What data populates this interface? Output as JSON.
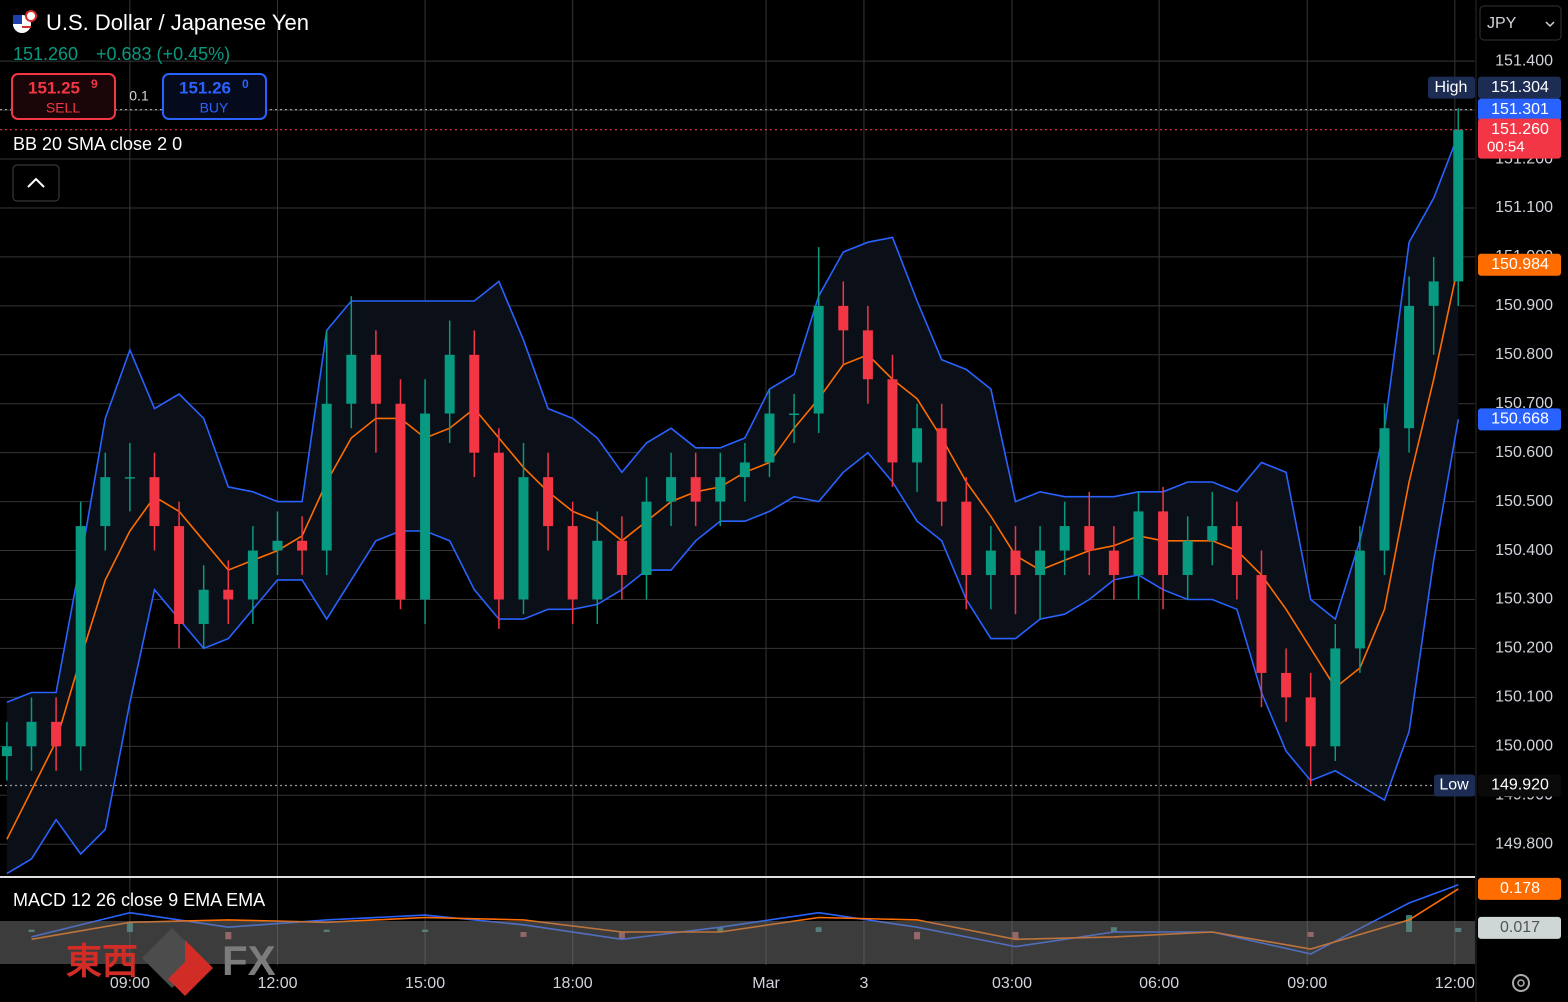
{
  "header": {
    "price_change": "+0.683 (+0.45%)",
    "sell_price": "151.25",
    "sell_pip": "9",
    "sell_label": "SELL",
    "spread": "0.1",
    "buy_price": "151.26",
    "buy_pip": "0",
    "buy_label": "BUY",
    "currency": "JPY"
  },
  "watermark": {
    "cjk": "東西",
    "latin": "FX"
  },
  "chart_data": [
    {
      "type": "candlestick",
      "title": "U.S. Dollar / Japanese Yen",
      "x": [
        -2.5,
        -2,
        -1.5,
        -1,
        -0.5,
        0,
        0.5,
        1,
        1.5,
        2,
        2.5,
        3,
        3.5,
        4,
        4.5,
        5,
        5.5,
        6,
        6.5,
        7,
        7.5,
        8,
        8.5,
        9,
        9.5,
        10,
        10.5,
        11,
        11.5,
        12,
        12.5,
        13,
        13.5,
        14,
        14.5,
        15,
        15.5,
        16,
        16.5,
        17,
        17.5,
        18,
        18.5,
        19,
        19.5,
        20,
        20.5,
        21,
        21.5,
        22,
        22.5,
        23,
        23.5,
        24,
        24.5,
        25,
        25.5,
        26,
        26.5,
        27
      ],
      "open": [
        149.98,
        150.0,
        150.05,
        150.0,
        150.45,
        150.55,
        150.55,
        150.45,
        150.25,
        150.32,
        150.3,
        150.4,
        150.42,
        150.4,
        150.7,
        150.8,
        150.7,
        150.3,
        150.68,
        150.8,
        150.6,
        150.3,
        150.55,
        150.45,
        150.3,
        150.42,
        150.35,
        150.5,
        150.55,
        150.5,
        150.55,
        150.58,
        150.68,
        150.68,
        150.9,
        150.85,
        150.75,
        150.58,
        150.65,
        150.5,
        150.35,
        150.4,
        150.35,
        150.4,
        150.45,
        150.4,
        150.35,
        150.48,
        150.35,
        150.42,
        150.45,
        150.35,
        150.15,
        150.1,
        150.0,
        150.2,
        150.4,
        150.65,
        150.9,
        150.95
      ],
      "high": [
        150.05,
        150.1,
        150.1,
        150.5,
        150.6,
        150.62,
        150.6,
        150.5,
        150.37,
        150.38,
        150.45,
        150.48,
        150.47,
        150.85,
        150.92,
        150.85,
        150.75,
        150.75,
        150.87,
        150.85,
        150.65,
        150.62,
        150.6,
        150.5,
        150.48,
        150.47,
        150.55,
        150.6,
        150.6,
        150.6,
        150.62,
        150.73,
        150.72,
        151.02,
        150.95,
        150.9,
        150.8,
        150.7,
        150.7,
        150.55,
        150.45,
        150.45,
        150.45,
        150.5,
        150.52,
        150.45,
        150.52,
        150.53,
        150.47,
        150.52,
        150.5,
        150.4,
        150.2,
        150.15,
        150.25,
        150.45,
        150.7,
        150.96,
        151.0,
        151.304
      ],
      "low": [
        149.93,
        149.95,
        149.95,
        149.95,
        150.4,
        150.48,
        150.4,
        150.2,
        150.2,
        150.25,
        150.25,
        150.35,
        150.35,
        150.35,
        150.65,
        150.6,
        150.28,
        150.25,
        150.62,
        150.55,
        150.24,
        150.27,
        150.4,
        150.25,
        150.25,
        150.3,
        150.3,
        150.45,
        150.45,
        150.45,
        150.5,
        150.55,
        150.62,
        150.64,
        150.78,
        150.7,
        150.53,
        150.52,
        150.45,
        150.28,
        150.28,
        150.27,
        150.26,
        150.35,
        150.35,
        150.3,
        150.3,
        150.28,
        150.3,
        150.37,
        150.3,
        150.08,
        150.05,
        149.92,
        149.97,
        150.15,
        150.35,
        150.6,
        150.8,
        150.9
      ],
      "close": [
        150.0,
        150.05,
        150.0,
        150.45,
        150.55,
        150.55,
        150.45,
        150.25,
        150.32,
        150.3,
        150.4,
        150.42,
        150.4,
        150.7,
        150.8,
        150.7,
        150.3,
        150.68,
        150.8,
        150.6,
        150.3,
        150.55,
        150.45,
        150.3,
        150.42,
        150.35,
        150.5,
        150.55,
        150.5,
        150.55,
        150.58,
        150.68,
        150.68,
        150.9,
        150.85,
        150.75,
        150.58,
        150.65,
        150.5,
        150.35,
        150.4,
        150.35,
        150.4,
        150.45,
        150.4,
        150.35,
        150.48,
        150.35,
        150.42,
        150.45,
        150.35,
        150.15,
        150.1,
        150.0,
        150.2,
        150.4,
        150.65,
        150.9,
        150.95,
        151.26
      ],
      "up_color": "#089981",
      "down_color": "#f23645",
      "bollinger": {
        "name": "BB 20 SMA close 2 0",
        "band_color": "#2962ff",
        "basis_color": "#ff6d00",
        "fill": "#0b0f17",
        "upper": [
          150.09,
          150.11,
          150.11,
          150.38,
          150.67,
          150.81,
          150.69,
          150.72,
          150.67,
          150.53,
          150.52,
          150.5,
          150.5,
          150.85,
          150.91,
          150.91,
          150.91,
          150.91,
          150.91,
          150.91,
          150.95,
          150.83,
          150.69,
          150.67,
          150.63,
          150.56,
          150.62,
          150.65,
          150.61,
          150.61,
          150.63,
          150.73,
          150.76,
          150.92,
          151.01,
          151.03,
          151.04,
          150.91,
          150.79,
          150.77,
          150.73,
          150.5,
          150.52,
          150.51,
          150.51,
          150.51,
          150.52,
          150.52,
          150.54,
          150.54,
          150.52,
          150.58,
          150.56,
          150.3,
          150.26,
          150.42,
          150.65,
          151.03,
          151.12,
          151.25
        ],
        "basis": [
          149.81,
          149.91,
          150.01,
          150.18,
          150.34,
          150.44,
          150.51,
          150.48,
          150.42,
          150.36,
          150.38,
          150.4,
          150.43,
          150.54,
          150.63,
          150.67,
          150.67,
          150.63,
          150.65,
          150.69,
          150.63,
          150.57,
          150.52,
          150.48,
          150.46,
          150.42,
          150.46,
          150.5,
          150.52,
          150.53,
          150.56,
          150.58,
          150.65,
          150.71,
          150.78,
          150.8,
          150.75,
          150.71,
          150.63,
          150.54,
          150.47,
          150.39,
          150.36,
          150.38,
          150.4,
          150.41,
          150.43,
          150.42,
          150.42,
          150.42,
          150.4,
          150.35,
          150.28,
          150.2,
          150.12,
          150.16,
          150.28,
          150.54,
          150.75,
          150.984
        ],
        "lower": [
          149.74,
          149.77,
          149.85,
          149.78,
          149.83,
          150.09,
          150.32,
          150.26,
          150.2,
          150.22,
          150.28,
          150.34,
          150.34,
          150.26,
          150.34,
          150.42,
          150.44,
          150.44,
          150.42,
          150.32,
          150.26,
          150.26,
          150.28,
          150.28,
          150.29,
          150.32,
          150.36,
          150.36,
          150.42,
          150.46,
          150.46,
          150.48,
          150.51,
          150.5,
          150.56,
          150.6,
          150.54,
          150.46,
          150.42,
          150.3,
          150.22,
          150.22,
          150.26,
          150.27,
          150.3,
          150.34,
          150.35,
          150.32,
          150.3,
          150.3,
          150.28,
          150.11,
          149.99,
          149.93,
          149.95,
          149.92,
          149.89,
          150.03,
          150.38,
          150.668
        ]
      },
      "high_marker": {
        "label": "High",
        "value": 151.304
      },
      "low_marker": {
        "label": "Low",
        "value": 149.92,
        "value_label": "149.920"
      },
      "bid_line": 151.301,
      "last": {
        "value": 151.26,
        "label": "151.260",
        "countdown": "00:54"
      },
      "xlim": [
        -2.64,
        27.34
      ],
      "xticks": [
        {
          "value": 0,
          "label": "09:00"
        },
        {
          "value": 3,
          "label": "12:00"
        },
        {
          "value": 6,
          "label": "15:00"
        },
        {
          "value": 9,
          "label": "18:00"
        },
        {
          "value": 12.93,
          "label": "Mar"
        },
        {
          "value": 14.92,
          "label": "3"
        },
        {
          "value": 17.93,
          "label": "03:00"
        },
        {
          "value": 20.92,
          "label": "06:00"
        },
        {
          "value": 23.93,
          "label": "09:00"
        },
        {
          "value": 26.93,
          "label": "12:00"
        }
      ],
      "ylim": [
        149.735,
        151.525
      ],
      "yticks": [
        {
          "value": 149.8,
          "label": "149.800"
        },
        {
          "value": 149.9,
          "label": "149.900"
        },
        {
          "value": 150,
          "label": "150.000"
        },
        {
          "value": 150.1,
          "label": "150.100"
        },
        {
          "value": 150.2,
          "label": "150.200"
        },
        {
          "value": 150.3,
          "label": "150.300"
        },
        {
          "value": 150.4,
          "label": "150.400"
        },
        {
          "value": 150.5,
          "label": "150.500"
        },
        {
          "value": 150.6,
          "label": "150.600"
        },
        {
          "value": 150.7,
          "label": "150.700"
        },
        {
          "value": 150.8,
          "label": "150.800"
        },
        {
          "value": 150.9,
          "label": "150.900"
        },
        {
          "value": 151,
          "label": "151.000"
        },
        {
          "value": 151.1,
          "label": "151.100"
        },
        {
          "value": 151.2,
          "label": "151.200"
        },
        {
          "value": 151.3,
          "label": "151.300"
        },
        {
          "value": 151.4,
          "label": "151.400"
        }
      ],
      "grid": true
    },
    {
      "type": "macd",
      "name": "MACD 12 26 close 9 EMA EMA",
      "x": [
        -2,
        0,
        2,
        4,
        6,
        8,
        10,
        12,
        14,
        16,
        18,
        20,
        22,
        24,
        26,
        27
      ],
      "series": [
        {
          "name": "MACD",
          "color": "#2962ff",
          "values": [
            -0.02,
            0.08,
            0.02,
            0.05,
            0.07,
            0.03,
            -0.03,
            0.02,
            0.08,
            0.02,
            -0.06,
            0.0,
            0.0,
            -0.09,
            0.12,
            0.195
          ]
        },
        {
          "name": "Signal",
          "color": "#ff6d00",
          "values": [
            -0.03,
            0.04,
            0.05,
            0.04,
            0.06,
            0.05,
            0.0,
            0.0,
            0.06,
            0.05,
            -0.03,
            -0.02,
            0.0,
            -0.07,
            0.05,
            0.178
          ]
        }
      ],
      "histogram": {
        "up_color": "#4db6ac",
        "down_color": "#f77c80",
        "values": [
          0.01,
          0.04,
          -0.03,
          0.01,
          0.01,
          -0.02,
          -0.03,
          0.02,
          0.02,
          -0.03,
          -0.03,
          0.02,
          0.0,
          -0.02,
          0.07,
          0.017
        ]
      },
      "ylim": [
        -0.136,
        0.223
      ]
    }
  ]
}
